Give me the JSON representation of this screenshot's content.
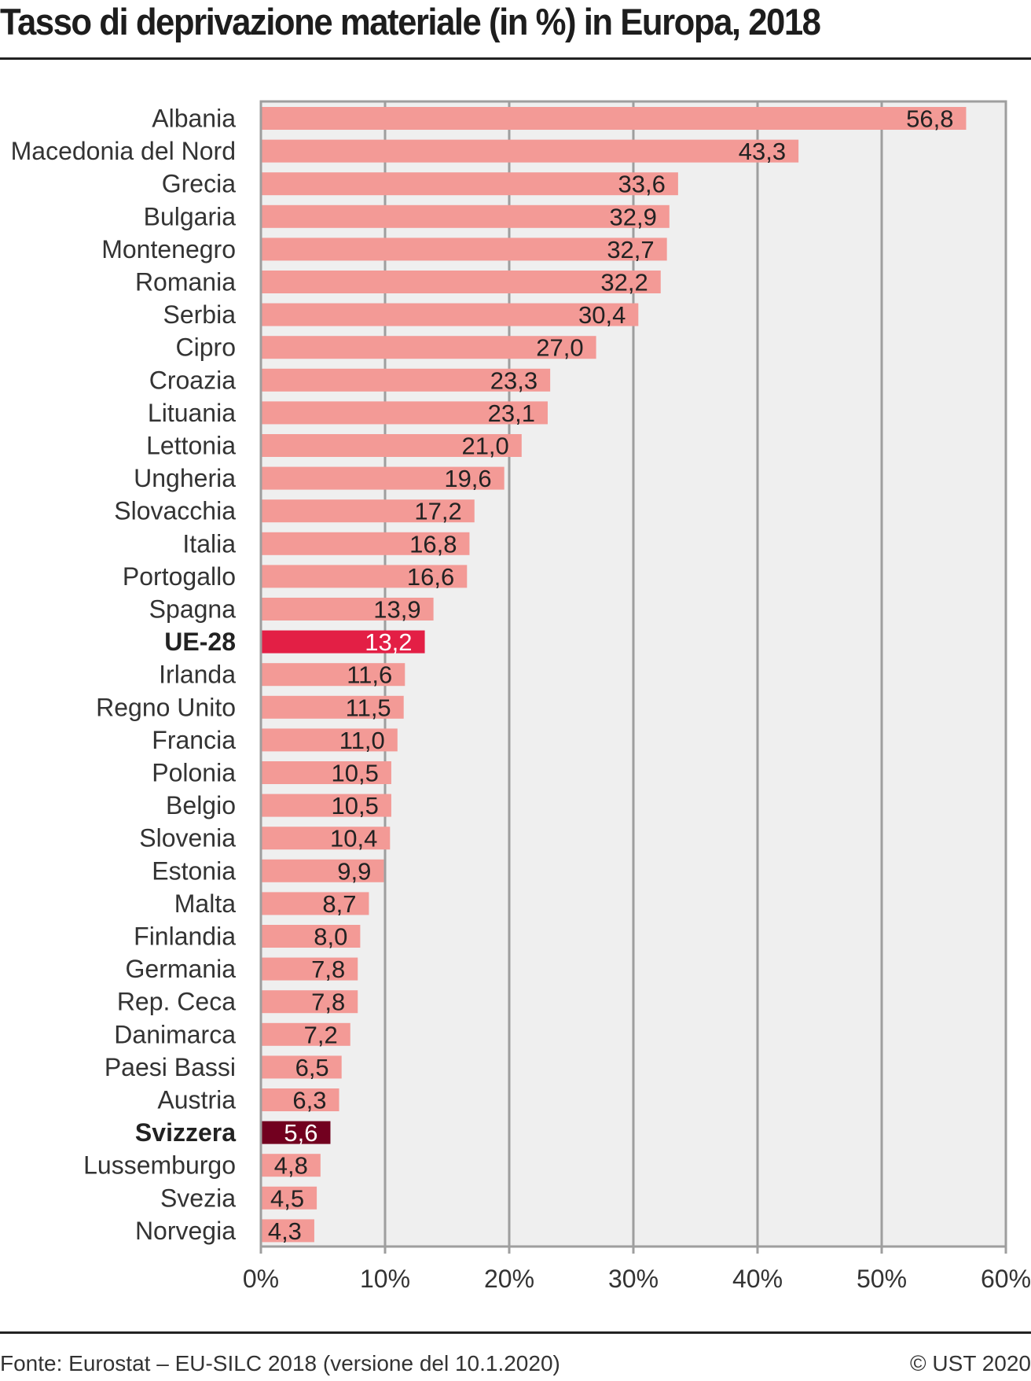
{
  "title": "Tasso di deprivazione materiale (in %) in Europa, 2018",
  "footer": {
    "source": "Fonte: Eurostat – EU-SILC 2018 (versione del 10.1.2020)",
    "copyright": "© UST 2020"
  },
  "colors": {
    "bar_default": "#f39a96",
    "bar_eu": "#e31f45",
    "bar_switzerland": "#72001f",
    "plot_background": "#efefef",
    "grid": "#9e9e9e"
  },
  "chart_data": {
    "type": "bar",
    "orientation": "horizontal",
    "title": "Tasso di deprivazione materiale (in %) in Europa, 2018",
    "xlabel": "",
    "ylabel": "",
    "xlim": [
      0,
      60
    ],
    "x_ticks": [
      0,
      10,
      20,
      30,
      40,
      50,
      60
    ],
    "x_tick_labels": [
      "0%",
      "10%",
      "20%",
      "30%",
      "40%",
      "50%",
      "60%"
    ],
    "grid": "vertical",
    "legend": "none",
    "categories": [
      "Albania",
      "Macedonia del Nord",
      "Grecia",
      "Bulgaria",
      "Montenegro",
      "Romania",
      "Serbia",
      "Cipro",
      "Croazia",
      "Lituania",
      "Lettonia",
      "Ungheria",
      "Slovacchia",
      "Italia",
      "Portogallo",
      "Spagna",
      "UE-28",
      "Irlanda",
      "Regno Unito",
      "Francia",
      "Polonia",
      "Belgio",
      "Slovenia",
      "Estonia",
      "Malta",
      "Finlandia",
      "Germania",
      "Rep. Ceca",
      "Danimarca",
      "Paesi Bassi",
      "Austria",
      "Svizzera",
      "Lussemburgo",
      "Svezia",
      "Norvegia"
    ],
    "values": [
      56.8,
      43.3,
      33.6,
      32.9,
      32.7,
      32.2,
      30.4,
      27.0,
      23.3,
      23.1,
      21.0,
      19.6,
      17.2,
      16.8,
      16.6,
      13.9,
      13.2,
      11.6,
      11.5,
      11.0,
      10.5,
      10.5,
      10.4,
      9.9,
      8.7,
      8.0,
      7.8,
      7.8,
      7.2,
      6.5,
      6.3,
      5.6,
      4.8,
      4.5,
      4.3
    ],
    "value_labels": [
      "56,8",
      "43,3",
      "33,6",
      "32,9",
      "32,7",
      "32,2",
      "30,4",
      "27,0",
      "23,3",
      "23,1",
      "21,0",
      "19,6",
      "17,2",
      "16,8",
      "16,6",
      "13,9",
      "13,2",
      "11,6",
      "11,5",
      "11,0",
      "10,5",
      "10,5",
      "10,4",
      "9,9",
      "8,7",
      "8,0",
      "7,8",
      "7,8",
      "7,2",
      "6,5",
      "6,3",
      "5,6",
      "4,8",
      "4,5",
      "4,3"
    ],
    "highlight": {
      "UE-28": "eu",
      "Svizzera": "switzerland"
    },
    "bold_categories": [
      "UE-28",
      "Svizzera"
    ]
  }
}
